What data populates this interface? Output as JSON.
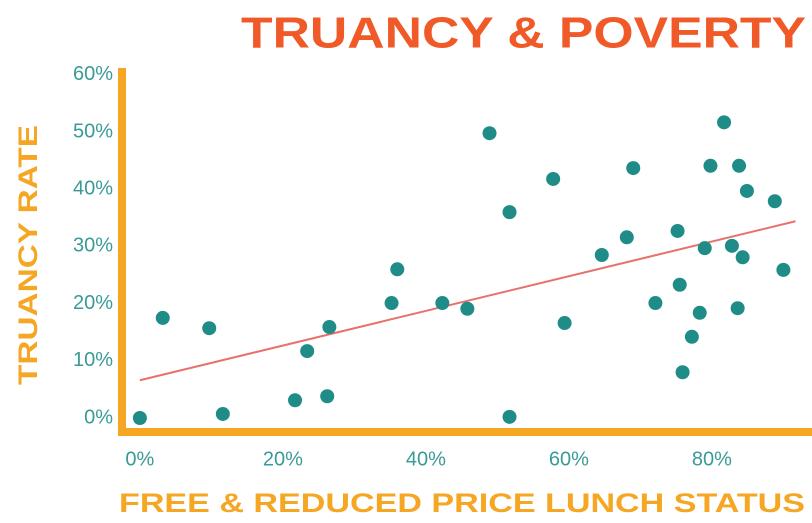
{
  "chart_data": {
    "type": "scatter",
    "title": "TRUANCY & POVERTY",
    "x_label": "FREE & REDUCED PRICE LUNCH STATUS",
    "y_label": "TRUANCY RATE",
    "color": "#1f8c88",
    "x": [
      0,
      3.2,
      9.7,
      11.6,
      21.7,
      23.4,
      26.2,
      26.5,
      35.2,
      36,
      42.3,
      45.8,
      48.9,
      51.7,
      51.7,
      57.8,
      59.4,
      64.6,
      68.1,
      69,
      72.1,
      75.2,
      75.5,
      75.9,
      77.2,
      78.3,
      79,
      79.8,
      81.7,
      82.8,
      83.6,
      83.8,
      84.3,
      84.9,
      88.8,
      90
    ],
    "values": [
      0,
      17.5,
      15.7,
      0.7,
      3.1,
      11.7,
      3.8,
      15.9,
      20.1,
      26,
      20.1,
      19.1,
      49.8,
      36,
      0.2,
      41.8,
      16.6,
      28.5,
      31.6,
      43.7,
      20.1,
      32.7,
      23.3,
      8,
      14.2,
      18.4,
      29.7,
      44.1,
      51.7,
      30.1,
      19.2,
      44.1,
      28.1,
      39.7,
      37.9,
      25.9
    ],
    "trendline": {
      "color": "#e8716d",
      "x": [
        0,
        91.7
      ],
      "y": [
        6.6,
        34.4
      ]
    },
    "xlim": [
      -2.5,
      94
    ],
    "ylim": [
      -2.1,
      61.2
    ],
    "xticks": [
      {
        "value": 0,
        "label": "0%"
      },
      {
        "value": 20,
        "label": "20%"
      },
      {
        "value": 40,
        "label": "40%"
      },
      {
        "value": 60,
        "label": "60%"
      },
      {
        "value": 80,
        "label": "80%"
      }
    ],
    "yticks": [
      {
        "value": 0,
        "label": "0%"
      },
      {
        "value": 10,
        "label": "10%"
      },
      {
        "value": 20,
        "label": "20%"
      },
      {
        "value": 30,
        "label": "30%"
      },
      {
        "value": 40,
        "label": "40%"
      },
      {
        "value": 50,
        "label": "50%"
      },
      {
        "value": 60,
        "label": "60%"
      }
    ]
  }
}
